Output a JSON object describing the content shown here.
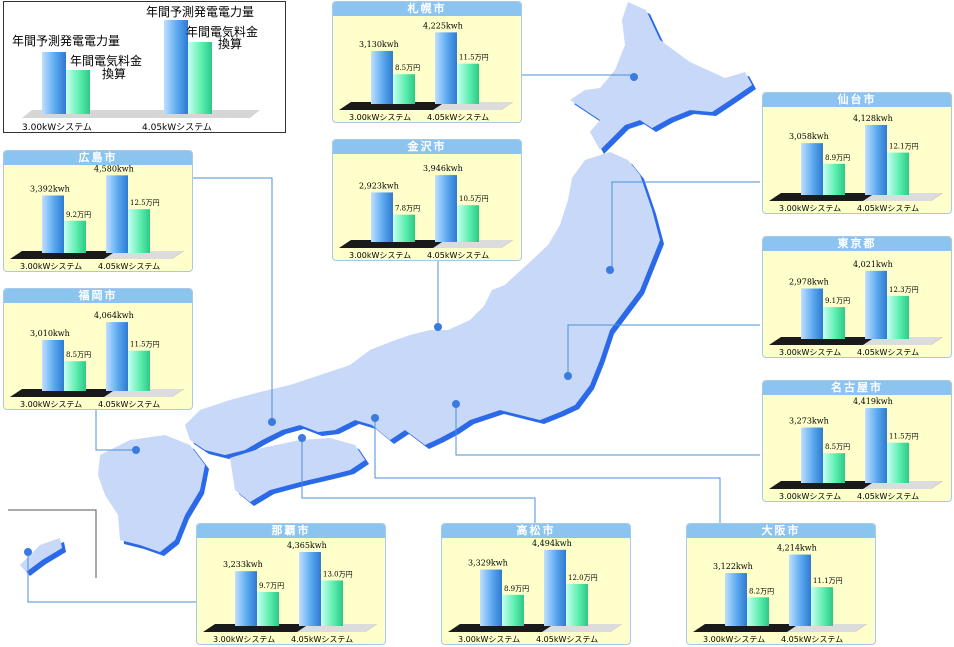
{
  "legend": {
    "label_gen_a": "年間予測発電電力量",
    "label_fee_a": "年間電気料金",
    "label_fee_a2": "換算",
    "label_gen_b": "年間予測発電電力量",
    "label_fee_b": "年間電気料金",
    "label_fee_b2": "換算",
    "sys_a": "3.00kWシステム",
    "sys_b": "4.05kWシステム"
  },
  "colors": {
    "gen_bar": "#5aa8f0",
    "fee_bar": "#5ef0b0",
    "map_land": "#c8d8f8",
    "map_shadow": "#2a6ae8",
    "panel_bg": "#ffffcc",
    "panel_header": "#8cc4f0"
  },
  "chart_data": [
    {
      "type": "bar",
      "title": "札幌市",
      "categories": [
        "3.00kWシステム",
        "4.05kWシステム"
      ],
      "series": [
        {
          "name": "年間予測発電電力量",
          "values": [
            3130,
            4225
          ],
          "labels": [
            "3,130kwh",
            "4,225kwh"
          ]
        },
        {
          "name": "年間電気料金換算",
          "values": [
            8.5,
            11.5
          ],
          "labels": [
            "8.5万円",
            "11.5万円"
          ]
        }
      ]
    },
    {
      "type": "bar",
      "title": "仙台市",
      "categories": [
        "3.00kWシステム",
        "4.05kWシステム"
      ],
      "series": [
        {
          "name": "年間予測発電電力量",
          "values": [
            3058,
            4128
          ],
          "labels": [
            "3,058kwh",
            "4,128kwh"
          ]
        },
        {
          "name": "年間電気料金換算",
          "values": [
            8.9,
            12.1
          ],
          "labels": [
            "8.9万円",
            "12.1万円"
          ]
        }
      ]
    },
    {
      "type": "bar",
      "title": "金沢市",
      "categories": [
        "3.00kWシステム",
        "4.05kWシステム"
      ],
      "series": [
        {
          "name": "年間予測発電電力量",
          "values": [
            2923,
            3946
          ],
          "labels": [
            "2,923kwh",
            "3,946kwh"
          ]
        },
        {
          "name": "年間電気料金換算",
          "values": [
            7.8,
            10.5
          ],
          "labels": [
            "7.8万円",
            "10.5万円"
          ]
        }
      ]
    },
    {
      "type": "bar",
      "title": "広島市",
      "categories": [
        "3.00kWシステム",
        "4.05kWシステム"
      ],
      "series": [
        {
          "name": "年間予測発電電力量",
          "values": [
            3392,
            4580
          ],
          "labels": [
            "3,392kwh",
            "4,580kwh"
          ]
        },
        {
          "name": "年間電気料金換算",
          "values": [
            9.2,
            12.5
          ],
          "labels": [
            "9.2万円",
            "12.5万円"
          ]
        }
      ]
    },
    {
      "type": "bar",
      "title": "福岡市",
      "categories": [
        "3.00kWシステム",
        "4.05kWシステム"
      ],
      "series": [
        {
          "name": "年間予測発電電力量",
          "values": [
            3010,
            4064
          ],
          "labels": [
            "3,010kwh",
            "4,064kwh"
          ]
        },
        {
          "name": "年間電気料金換算",
          "values": [
            8.5,
            11.5
          ],
          "labels": [
            "8.5万円",
            "11.5万円"
          ]
        }
      ]
    },
    {
      "type": "bar",
      "title": "東京都",
      "categories": [
        "3.00kWシステム",
        "4.05kWシステム"
      ],
      "series": [
        {
          "name": "年間予測発電電力量",
          "values": [
            2978,
            4021
          ],
          "labels": [
            "2,978kwh",
            "4,021kwh"
          ]
        },
        {
          "name": "年間電気料金換算",
          "values": [
            9.1,
            12.3
          ],
          "labels": [
            "9.1万円",
            "12.3万円"
          ]
        }
      ]
    },
    {
      "type": "bar",
      "title": "名古屋市",
      "categories": [
        "3.00kWシステム",
        "4.05kWシステム"
      ],
      "series": [
        {
          "name": "年間予測発電電力量",
          "values": [
            3273,
            4419
          ],
          "labels": [
            "3,273kwh",
            "4,419kwh"
          ]
        },
        {
          "name": "年間電気料金換算",
          "values": [
            8.5,
            11.5
          ],
          "labels": [
            "8.5万円",
            "11.5万円"
          ]
        }
      ]
    },
    {
      "type": "bar",
      "title": "那覇市",
      "categories": [
        "3.00kWシステム",
        "4.05kWシステム"
      ],
      "series": [
        {
          "name": "年間予測発電電力量",
          "values": [
            3233,
            4365
          ],
          "labels": [
            "3,233kwh",
            "4,365kwh"
          ]
        },
        {
          "name": "年間電気料金換算",
          "values": [
            9.7,
            13.0
          ],
          "labels": [
            "9.7万円",
            "13.0万円"
          ]
        }
      ]
    },
    {
      "type": "bar",
      "title": "高松市",
      "categories": [
        "3.00kWシステム",
        "4.05kWシステム"
      ],
      "series": [
        {
          "name": "年間予測発電電力量",
          "values": [
            3329,
            4494
          ],
          "labels": [
            "3,329kwh",
            "4,494kwh"
          ]
        },
        {
          "name": "年間電気料金換算",
          "values": [
            8.9,
            12.0
          ],
          "labels": [
            "8.9万円",
            "12.0万円"
          ]
        }
      ]
    },
    {
      "type": "bar",
      "title": "大阪市",
      "categories": [
        "3.00kWシステム",
        "4.05kWシステム"
      ],
      "series": [
        {
          "name": "年間予測発電電力量",
          "values": [
            3122,
            4214
          ],
          "labels": [
            "3,122kwh",
            "4,214kwh"
          ]
        },
        {
          "name": "年間電気料金換算",
          "values": [
            8.2,
            11.1
          ],
          "labels": [
            "8.2万円",
            "11.1万円"
          ]
        }
      ]
    }
  ]
}
